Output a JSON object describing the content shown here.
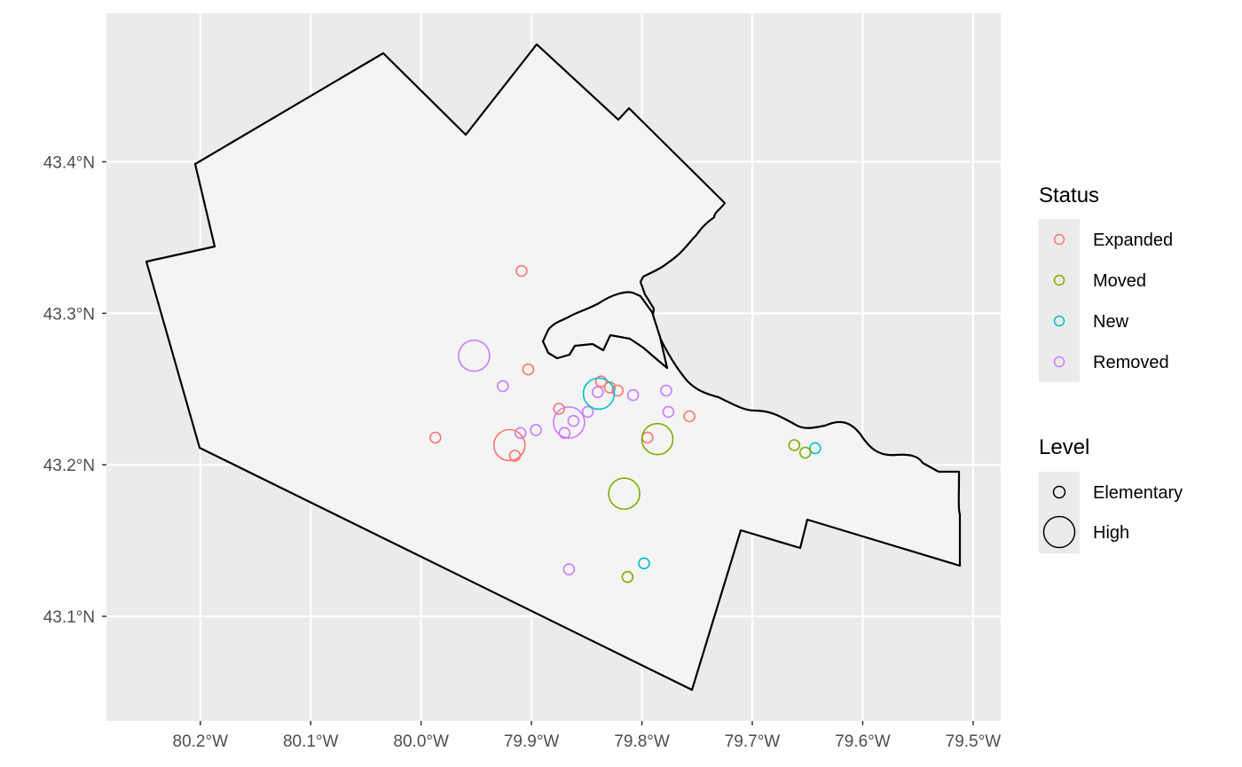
{
  "chart_data": {
    "type": "scatter",
    "map_region": "boundary polygon",
    "x_axis": {
      "range": [
        -80.285,
        -79.475
      ],
      "ticks": [
        {
          "value": -80.2,
          "label": "80.2°W"
        },
        {
          "value": -80.1,
          "label": "80.1°W"
        },
        {
          "value": -80.0,
          "label": "80.0°W"
        },
        {
          "value": -79.9,
          "label": "79.9°W"
        },
        {
          "value": -79.8,
          "label": "79.8°W"
        },
        {
          "value": -79.7,
          "label": "79.7°W"
        },
        {
          "value": -79.6,
          "label": "79.6°W"
        },
        {
          "value": -79.5,
          "label": "79.5°W"
        }
      ]
    },
    "y_axis": {
      "range": [
        43.031,
        43.498
      ],
      "ticks": [
        {
          "value": 43.1,
          "label": "43.1°N"
        },
        {
          "value": 43.2,
          "label": "43.2°N"
        },
        {
          "value": 43.3,
          "label": "43.3°N"
        },
        {
          "value": 43.4,
          "label": "43.4°N"
        }
      ]
    },
    "grid": true,
    "boundary": [
      [
        -80.2,
        43.397
      ],
      [
        -80.036,
        43.471
      ],
      [
        -79.961,
        43.418
      ],
      [
        -79.895,
        43.477
      ],
      [
        -79.787,
        43.431
      ],
      [
        -79.754,
        43.417
      ],
      [
        -79.726,
        43.373
      ]
    ],
    "schools": [
      {
        "status": "Removed",
        "level": "High",
        "lon": -79.952,
        "lat": 43.272
      },
      {
        "status": "Removed",
        "level": "Elementary",
        "lon": -79.926,
        "lat": 43.252
      },
      {
        "status": "Removed",
        "level": "Elementary",
        "lon": -79.91,
        "lat": 43.221
      },
      {
        "status": "Removed",
        "level": "Elementary",
        "lon": -79.896,
        "lat": 43.223
      },
      {
        "status": "Removed",
        "level": "Elementary",
        "lon": -79.87,
        "lat": 43.221
      },
      {
        "status": "Removed",
        "level": "High",
        "lon": -79.866,
        "lat": 43.228
      },
      {
        "status": "Removed",
        "level": "Elementary",
        "lon": -79.862,
        "lat": 43.229
      },
      {
        "status": "Removed",
        "level": "Elementary",
        "lon": -79.849,
        "lat": 43.235
      },
      {
        "status": "Removed",
        "level": "Elementary",
        "lon": -79.84,
        "lat": 43.248
      },
      {
        "status": "Removed",
        "level": "Elementary",
        "lon": -79.808,
        "lat": 43.246
      },
      {
        "status": "Removed",
        "level": "Elementary",
        "lon": -79.778,
        "lat": 43.249
      },
      {
        "status": "Removed",
        "level": "Elementary",
        "lon": -79.776,
        "lat": 43.235
      },
      {
        "status": "Removed",
        "level": "Elementary",
        "lon": -79.866,
        "lat": 43.131
      },
      {
        "status": "Expanded",
        "level": "Elementary",
        "lon": -79.909,
        "lat": 43.328
      },
      {
        "status": "Expanded",
        "level": "Elementary",
        "lon": -79.903,
        "lat": 43.263
      },
      {
        "status": "Expanded",
        "level": "Elementary",
        "lon": -79.987,
        "lat": 43.218
      },
      {
        "status": "Expanded",
        "level": "High",
        "lon": -79.92,
        "lat": 43.213
      },
      {
        "status": "Expanded",
        "level": "Elementary",
        "lon": -79.915,
        "lat": 43.206
      },
      {
        "status": "Expanded",
        "level": "Elementary",
        "lon": -79.875,
        "lat": 43.237
      },
      {
        "status": "Expanded",
        "level": "Elementary",
        "lon": -79.837,
        "lat": 43.255
      },
      {
        "status": "Expanded",
        "level": "Elementary",
        "lon": -79.829,
        "lat": 43.251
      },
      {
        "status": "Expanded",
        "level": "Elementary",
        "lon": -79.822,
        "lat": 43.249
      },
      {
        "status": "Expanded",
        "level": "Elementary",
        "lon": -79.795,
        "lat": 43.218
      },
      {
        "status": "Expanded",
        "level": "Elementary",
        "lon": -79.757,
        "lat": 43.232
      },
      {
        "status": "New",
        "level": "High",
        "lon": -79.839,
        "lat": 43.247
      },
      {
        "status": "New",
        "level": "Elementary",
        "lon": -79.798,
        "lat": 43.135
      },
      {
        "status": "New",
        "level": "Elementary",
        "lon": -79.643,
        "lat": 43.211
      },
      {
        "status": "Moved",
        "level": "High",
        "lon": -79.786,
        "lat": 43.217
      },
      {
        "status": "Moved",
        "level": "High",
        "lon": -79.816,
        "lat": 43.181
      },
      {
        "status": "Moved",
        "level": "Elementary",
        "lon": -79.813,
        "lat": 43.126
      },
      {
        "status": "Moved",
        "level": "Elementary",
        "lon": -79.662,
        "lat": 43.213
      },
      {
        "status": "Moved",
        "level": "Elementary",
        "lon": -79.652,
        "lat": 43.208
      }
    ]
  },
  "legend": {
    "status": {
      "title": "Status",
      "items": [
        {
          "label": "Expanded",
          "color": "#F8766D"
        },
        {
          "label": "Moved",
          "color": "#7CAE00"
        },
        {
          "label": "New",
          "color": "#00BFC4"
        },
        {
          "label": "Removed",
          "color": "#C77CFF"
        }
      ]
    },
    "level": {
      "title": "Level",
      "items": [
        {
          "label": "Elementary"
        },
        {
          "label": "High"
        }
      ]
    }
  },
  "colors": {
    "panel_background": "#EBEBEB",
    "grid": "#FFFFFF",
    "land_fill": "#F4F4F4",
    "boundary_stroke": "#000000"
  }
}
